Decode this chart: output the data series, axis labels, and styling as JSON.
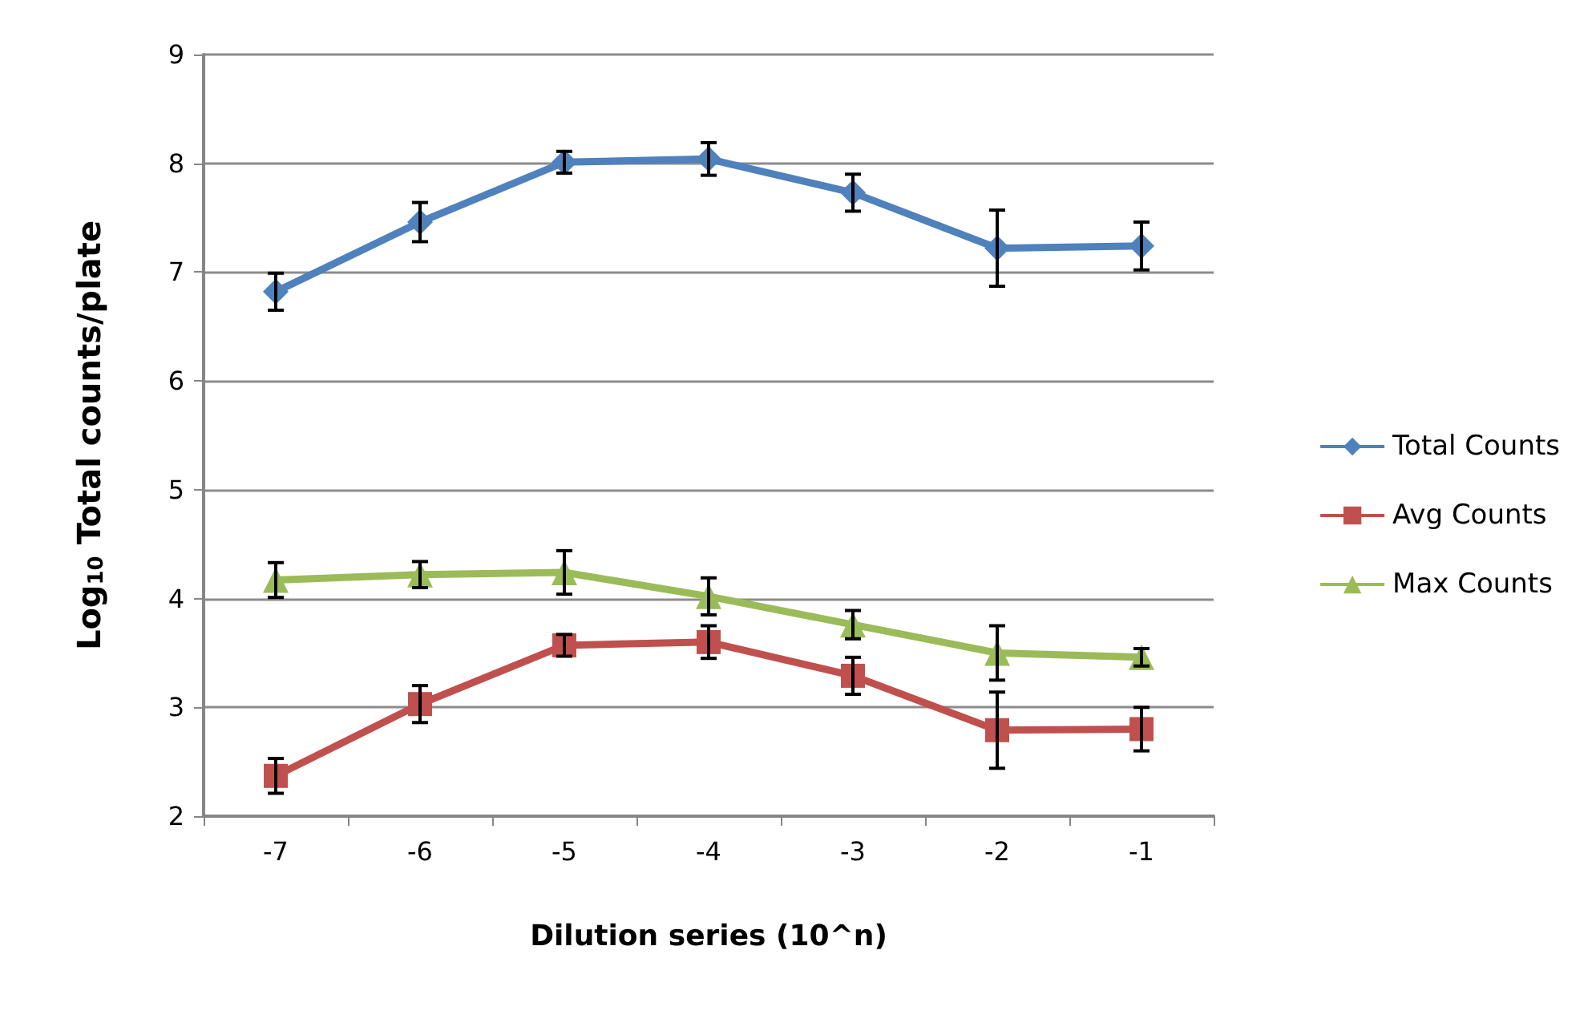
{
  "chart_data": {
    "type": "line",
    "xlabel": "Dilution series (10^n)",
    "ylabel": "Log$_{10}$ Total counts/plate",
    "categories": [
      "-7",
      "-6",
      "-5",
      "-4",
      "-3",
      "-2",
      "-1"
    ],
    "series": [
      {
        "name": "Total Counts",
        "color": "#4f81bd",
        "marker": "diamond",
        "values": [
          6.82,
          7.46,
          8.01,
          8.04,
          7.73,
          7.22,
          7.24
        ],
        "errors": [
          0.17,
          0.18,
          0.1,
          0.15,
          0.17,
          0.35,
          0.22
        ]
      },
      {
        "name": "Avg Counts",
        "color": "#c0504d",
        "marker": "square",
        "values": [
          2.37,
          3.03,
          3.57,
          3.6,
          3.29,
          2.79,
          2.8
        ],
        "errors": [
          0.16,
          0.17,
          0.1,
          0.15,
          0.17,
          0.35,
          0.2
        ]
      },
      {
        "name": "Max Counts",
        "color": "#9bbb59",
        "marker": "triangle",
        "values": [
          4.17,
          4.22,
          4.24,
          4.02,
          3.76,
          3.5,
          3.46
        ],
        "errors": [
          0.16,
          0.12,
          0.2,
          0.17,
          0.13,
          0.25,
          0.08
        ]
      }
    ],
    "ylim": [
      2,
      9
    ],
    "yticks": [
      2,
      3,
      4,
      5,
      6,
      7,
      8,
      9
    ],
    "grid": "y",
    "legend": "right",
    "line_style": "solid"
  }
}
